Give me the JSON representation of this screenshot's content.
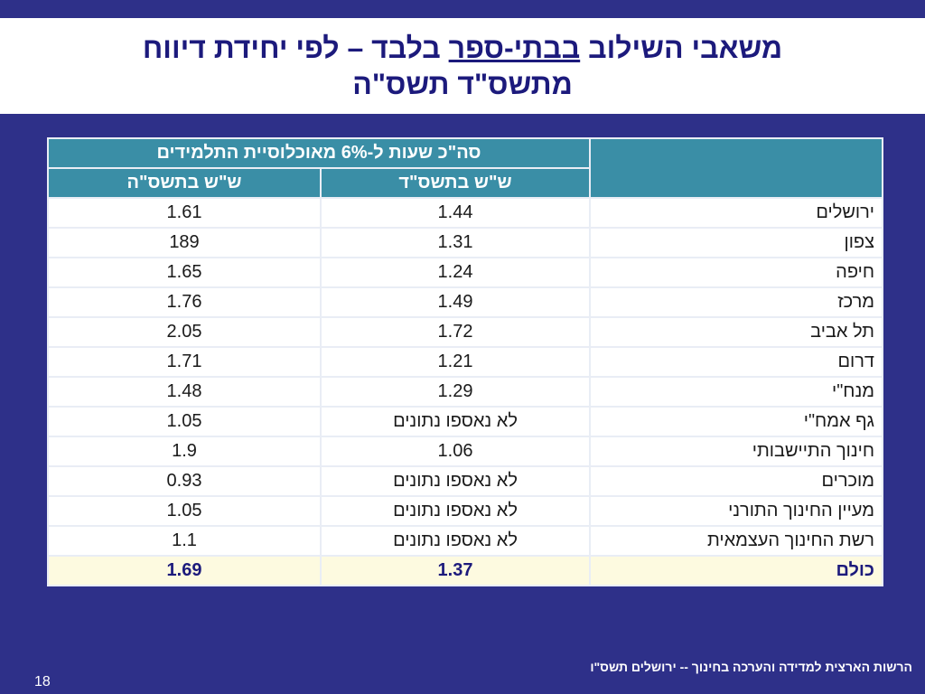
{
  "title": {
    "line1_part1": "משאבי השילוב ",
    "line1_underlined": "בבתי-ספר",
    "line1_part2": " בלבד – לפי יחידת דיווח",
    "line2": "מתשס\"ד תשס\"ה"
  },
  "table": {
    "group_header": "סה\"כ שעות ל-6% מאוכלוסיית התלמידים",
    "col_headers": [
      "ש\"ש בתשס\"ד",
      "ש\"ש בתשס\"ה"
    ],
    "rows": [
      {
        "region": "ירושלים",
        "tashsad": "1.44",
        "tashsah": "1.61"
      },
      {
        "region": "צפון",
        "tashsad": "1.31",
        "tashsah": "189"
      },
      {
        "region": "חיפה",
        "tashsad": "1.24",
        "tashsah": "1.65"
      },
      {
        "region": "מרכז",
        "tashsad": "1.49",
        "tashsah": "1.76"
      },
      {
        "region": "תל אביב",
        "tashsad": "1.72",
        "tashsah": "2.05"
      },
      {
        "region": "דרום",
        "tashsad": "1.21",
        "tashsah": "1.71"
      },
      {
        "region": "מנח\"י",
        "tashsad": "1.29",
        "tashsah": "1.48"
      },
      {
        "region": "גף אמח\"י",
        "tashsad": "לא נאספו נתונים",
        "tashsah": "1.05"
      },
      {
        "region": "חינוך התיישבותי",
        "tashsad": "1.06",
        "tashsah": "1.9"
      },
      {
        "region": "מוכרים",
        "tashsad": "לא נאספו נתונים",
        "tashsah": "0.93"
      },
      {
        "region": "מעיין החינוך התורני",
        "tashsad": "לא נאספו נתונים",
        "tashsah": "1.05"
      },
      {
        "region": "רשת החינוך העצמאית",
        "tashsad": "לא נאספו נתונים",
        "tashsah": "1.1"
      }
    ],
    "total": {
      "region": "כולם",
      "tashsad": "1.37",
      "tashsah": "1.69"
    }
  },
  "footer": "הרשות הארצית למדידה והערכה בחינוך  -- ירושלים תשס\"ו",
  "page_number": "18"
}
